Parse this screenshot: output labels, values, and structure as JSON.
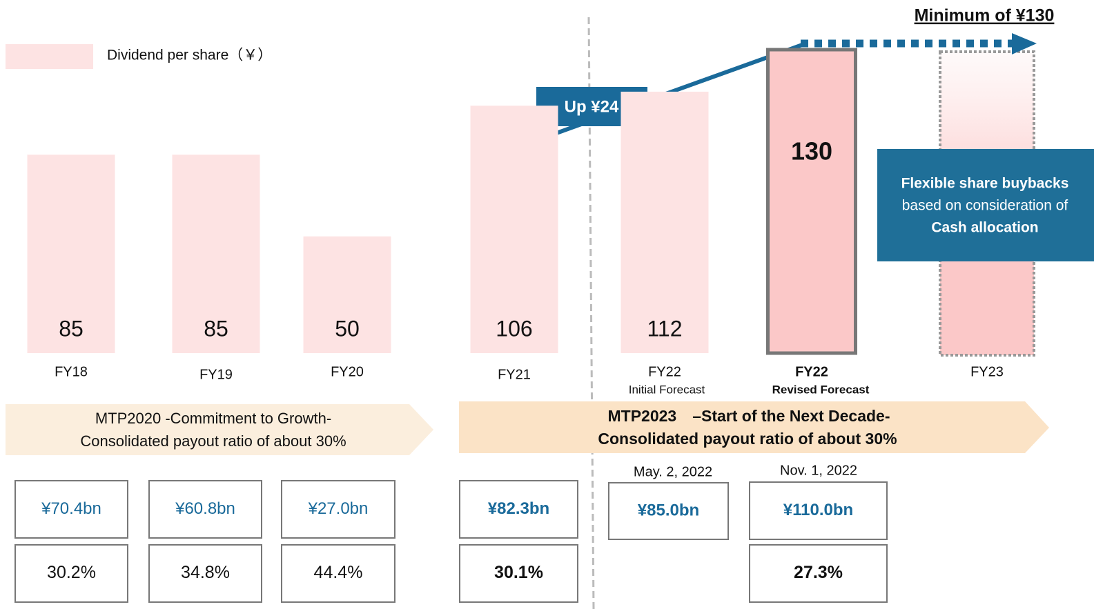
{
  "chart_data": {
    "type": "bar",
    "legend": "Dividend per share（￥）",
    "color": "#fde3e3",
    "categories": [
      "FY18",
      "FY19",
      "FY20",
      "FY21",
      "FY22",
      "FY22",
      "FY23"
    ],
    "category_notes": [
      null,
      null,
      null,
      null,
      "Initial Forecast",
      "Revised Forecast",
      null
    ],
    "values": [
      85,
      85,
      50,
      106,
      112,
      130,
      null
    ],
    "annotations": {
      "increase": "Up ¥24",
      "target": "Minimum of ¥130",
      "buybacks": [
        "Flexible share buybacks",
        "based on consideration of",
        "Cash allocation"
      ]
    },
    "banners": [
      [
        "MTP2020 -Commitment to Growth-",
        "Consolidated payout ratio of about 30%"
      ],
      [
        "MTP2023　–Start of the Next Decade-",
        "Consolidated payout ratio of about 30%"
      ]
    ],
    "dates": [
      "May. 2, 2022",
      "Nov. 1, 2022"
    ],
    "total_dividends": [
      "¥70.4bn",
      "¥60.8bn",
      "¥27.0bn",
      "¥82.3bn",
      "¥85.0bn",
      "¥110.0bn"
    ],
    "payout_ratios": [
      "30.2%",
      "34.8%",
      "44.4%",
      "30.1%",
      "27.3%"
    ]
  }
}
